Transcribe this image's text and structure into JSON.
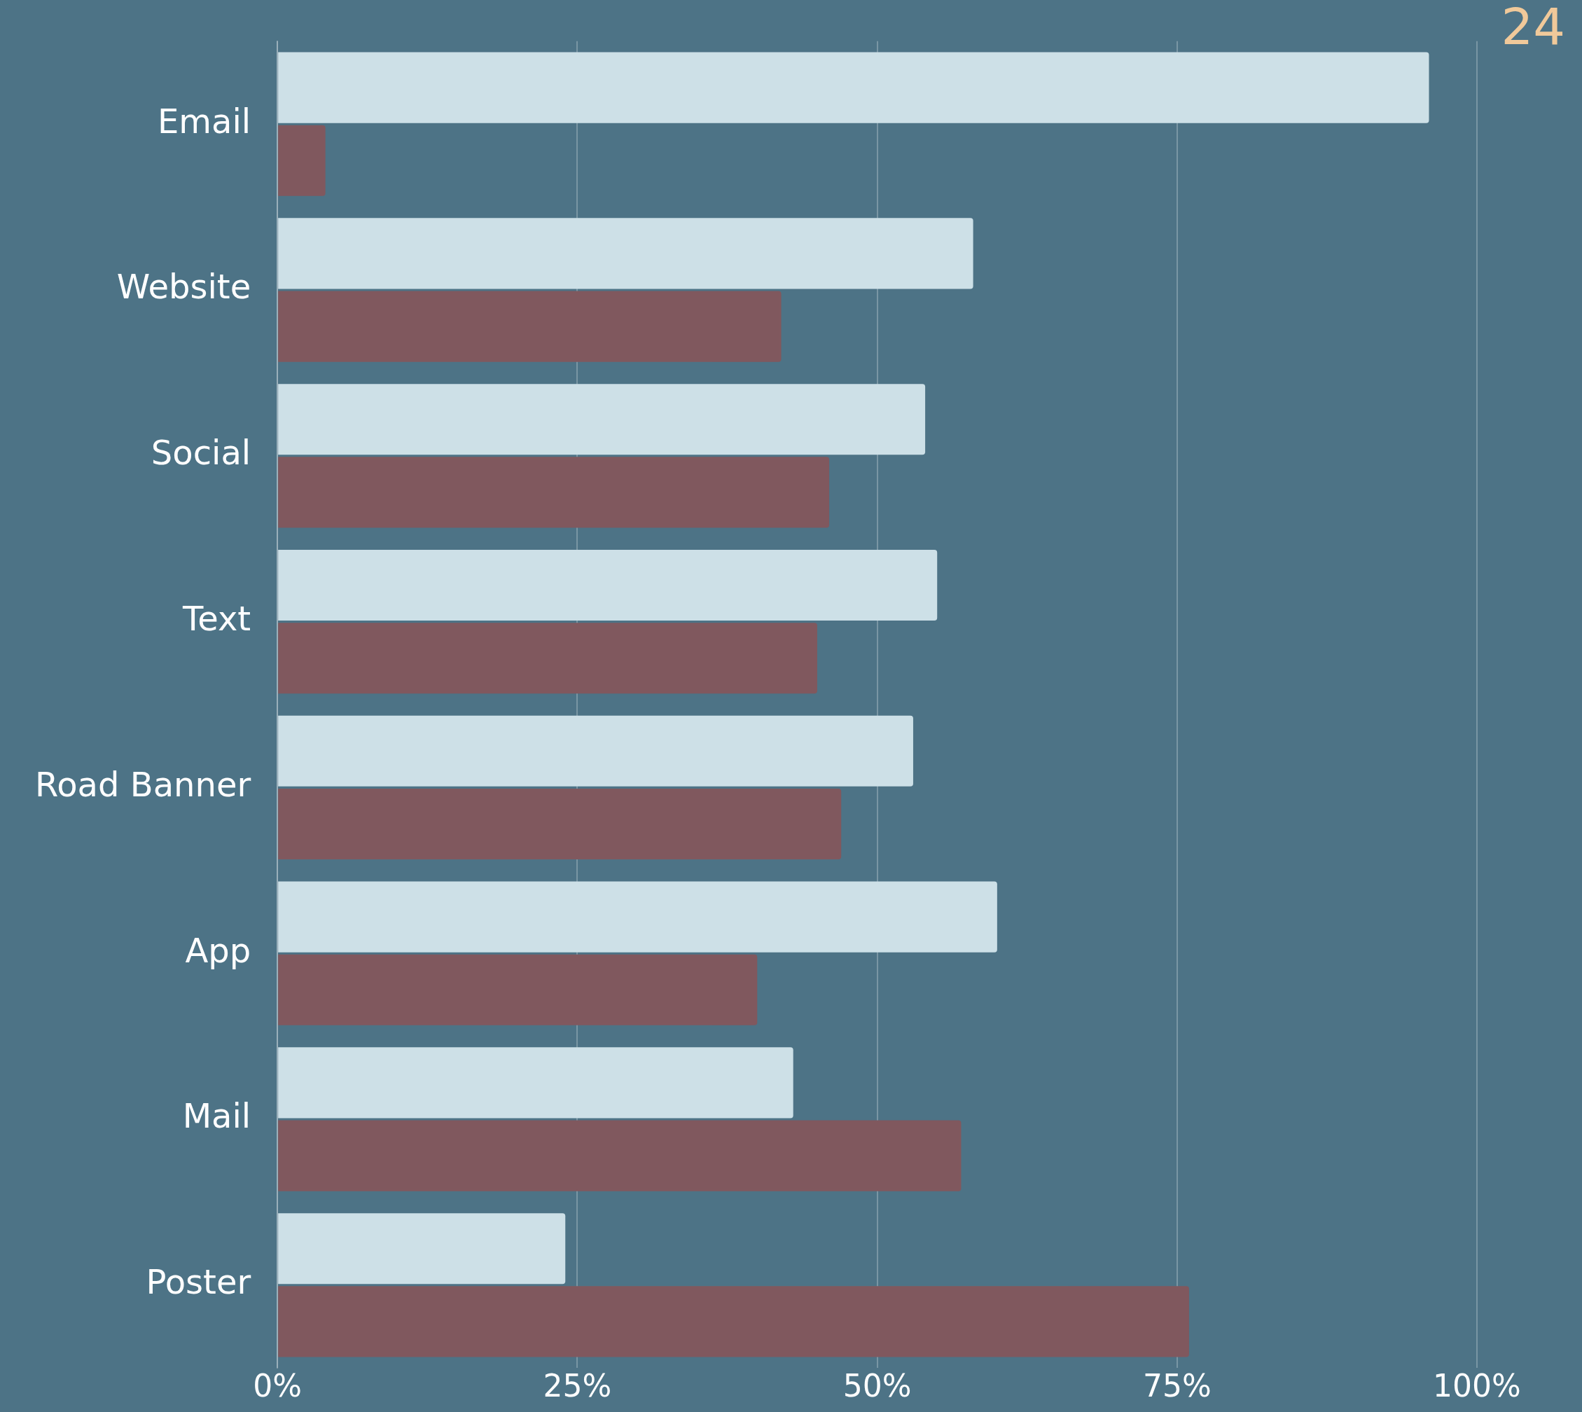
{
  "chart_data": {
    "type": "bar",
    "orientation": "horizontal",
    "categories": [
      "Email",
      "Website",
      "Social",
      "Text",
      "Road Banner",
      "App",
      "Mail",
      "Poster"
    ],
    "series": [
      {
        "color": "#cde0e7",
        "values": [
          96,
          58,
          54,
          55,
          53,
          60,
          43,
          24
        ]
      },
      {
        "color": "#80585e",
        "values": [
          4,
          42,
          46,
          45,
          47,
          40,
          57,
          76
        ]
      }
    ],
    "xlim": [
      0,
      100
    ],
    "xticks": [
      {
        "value": 0,
        "label": "0%"
      },
      {
        "value": 25,
        "label": "25%"
      },
      {
        "value": 50,
        "label": "50%"
      },
      {
        "value": 75,
        "label": "75%"
      },
      {
        "value": 100,
        "label": "100%"
      }
    ],
    "grid": "x",
    "legend": false,
    "annotations": [
      "24"
    ]
  }
}
